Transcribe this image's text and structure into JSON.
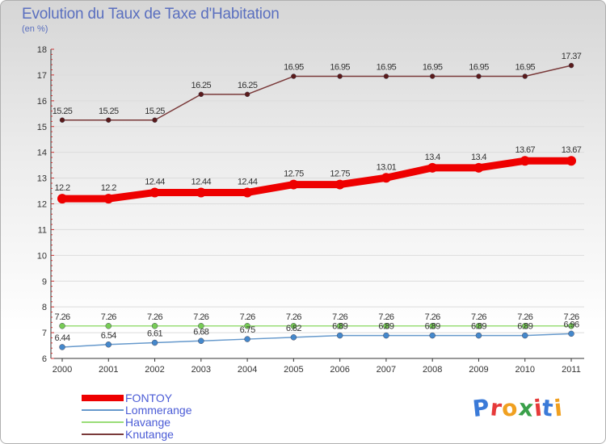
{
  "chart_data": {
    "type": "line",
    "title": "Evolution du Taux de Taxe d'Habitation",
    "unit_label": "(en %)",
    "x": [
      2000,
      2001,
      2002,
      2003,
      2004,
      2005,
      2006,
      2007,
      2008,
      2009,
      2010,
      2011
    ],
    "ylim": [
      6,
      18
    ],
    "yticks": [
      6,
      7,
      8,
      9,
      10,
      11,
      12,
      13,
      14,
      15,
      16,
      17,
      18
    ],
    "series": [
      {
        "name": "Knutange",
        "color": "#7a3a3a",
        "marker_color": "#5a1a1a",
        "width": 1.5,
        "marker": 3,
        "values": [
          15.25,
          15.25,
          15.25,
          16.25,
          16.25,
          16.95,
          16.95,
          16.95,
          16.95,
          16.95,
          16.95,
          17.37
        ],
        "labels": [
          "15.25",
          "15.25",
          "15.25",
          "16.25",
          "16.25",
          "16.95",
          "16.95",
          "16.95",
          "16.95",
          "16.95",
          "16.95",
          "17.37"
        ]
      },
      {
        "name": "FONTOY",
        "color": "#ee0000",
        "marker_color": "#ee0000",
        "width": 9,
        "marker": 6,
        "values": [
          12.2,
          12.2,
          12.44,
          12.44,
          12.44,
          12.75,
          12.75,
          13.01,
          13.4,
          13.4,
          13.67,
          13.67
        ],
        "labels": [
          "12.2",
          "12.2",
          "12.44",
          "12.44",
          "12.44",
          "12.75",
          "12.75",
          "13.01",
          "13.4",
          "13.4",
          "13.67",
          "13.67"
        ]
      },
      {
        "name": "Havange",
        "color": "#99dd77",
        "marker_color": "#77cc55",
        "width": 1.5,
        "marker": 3.5,
        "values": [
          7.26,
          7.26,
          7.26,
          7.26,
          7.26,
          7.26,
          7.26,
          7.26,
          7.26,
          7.26,
          7.26,
          7.26
        ],
        "labels": [
          "7.26",
          "7.26",
          "7.26",
          "7.26",
          "7.26",
          "7.26",
          "7.26",
          "7.26",
          "7.26",
          "7.26",
          "7.26",
          "7.26"
        ]
      },
      {
        "name": "Lommerange",
        "color": "#6699cc",
        "marker_color": "#4488cc",
        "width": 1.5,
        "marker": 3.5,
        "values": [
          6.44,
          6.54,
          6.61,
          6.68,
          6.75,
          6.82,
          6.89,
          6.89,
          6.89,
          6.89,
          6.89,
          6.96
        ],
        "labels": [
          "6.44",
          "6.54",
          "6.61",
          "6.68",
          "6.75",
          "6.82",
          "6.89",
          "6.89",
          "6.89",
          "6.89",
          "6.89",
          "6.96"
        ]
      }
    ],
    "legend": [
      {
        "name": "FONTOY",
        "color": "#ee0000",
        "width": 8
      },
      {
        "name": "Lommerange",
        "color": "#6699cc",
        "width": 2
      },
      {
        "name": "Havange",
        "color": "#99dd77",
        "width": 2
      },
      {
        "name": "Knutange",
        "color": "#7a3a3a",
        "width": 2
      }
    ]
  },
  "logo": {
    "letters": [
      "P",
      "r",
      "o",
      "x",
      "i",
      "t",
      "i"
    ],
    "colors": [
      "#3a7ad8",
      "#e63a3a",
      "#f0a020",
      "#3aa04a",
      "#e63a3a",
      "#3a7ad8",
      "#f0a020"
    ]
  }
}
